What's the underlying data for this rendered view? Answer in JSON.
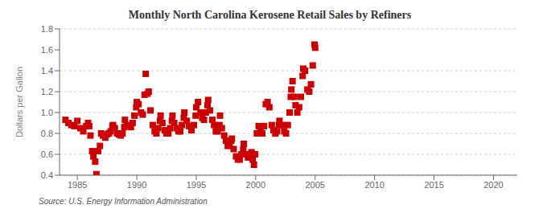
{
  "chart_data": {
    "type": "scatter",
    "title": "Monthly North Carolina Kerosene Retail Sales by Refiners",
    "ylabel": "Dollars per Gallon",
    "annotations": [
      "Source: U.S. Energy Information Administration"
    ],
    "color": "#CC0000",
    "marker": "square",
    "grid": "y",
    "xlim": [
      1983.5,
      2022
    ],
    "ylim": [
      0.4,
      1.8
    ],
    "xticks": [
      1985,
      1990,
      1995,
      2000,
      2005,
      2010,
      2015,
      2020
    ],
    "yticks": [
      0.4,
      0.6,
      0.8,
      {
        "value": 1.0,
        "label": "1.0"
      },
      1.2,
      1.4,
      1.6,
      1.8
    ],
    "x": [
      1984.0,
      1984.25,
      1984.5,
      1984.75,
      1985.0,
      1985.25,
      1985.5,
      1985.75,
      1985.9,
      1986.0,
      1986.1,
      1986.25,
      1986.35,
      1986.5,
      1986.6,
      1986.75,
      1986.9,
      1987.0,
      1987.15,
      1987.35,
      1987.5,
      1987.65,
      1987.8,
      1987.95,
      1988.0,
      1988.15,
      1988.35,
      1988.5,
      1988.65,
      1988.8,
      1988.95,
      1989.0,
      1989.15,
      1989.35,
      1989.5,
      1989.65,
      1989.8,
      1989.95,
      1990.0,
      1990.15,
      1990.35,
      1990.5,
      1990.65,
      1990.75,
      1990.9,
      1991.0,
      1991.15,
      1991.35,
      1991.5,
      1991.65,
      1991.8,
      1991.95,
      1992.0,
      1992.15,
      1992.35,
      1992.5,
      1992.65,
      1992.8,
      1992.95,
      1993.0,
      1993.15,
      1993.35,
      1993.5,
      1993.65,
      1993.8,
      1993.95,
      1994.0,
      1994.2,
      1994.4,
      1994.6,
      1994.8,
      1994.95,
      1995.0,
      1995.15,
      1995.35,
      1995.5,
      1995.65,
      1995.8,
      1995.95,
      1996.0,
      1996.15,
      1996.35,
      1996.5,
      1996.65,
      1996.8,
      1996.95,
      1997.0,
      1997.15,
      1997.35,
      1997.5,
      1997.65,
      1997.8,
      1997.95,
      1998.0,
      1998.15,
      1998.35,
      1998.5,
      1998.65,
      1998.8,
      1998.95,
      1999.0,
      1999.15,
      1999.35,
      1999.5,
      1999.65,
      1999.75,
      1999.85,
      1999.95,
      2000.1,
      2000.25,
      2000.4,
      2000.55,
      2000.7,
      2000.85,
      2001.0,
      2001.15,
      2001.35,
      2001.5,
      2001.65,
      2001.8,
      2001.95,
      2002.0,
      2002.2,
      2002.4,
      2002.55,
      2002.7,
      2002.85,
      2002.95,
      2003.0,
      2003.1,
      2003.25,
      2003.35,
      2003.5,
      2003.65,
      2003.8,
      2003.95,
      2004.0,
      2004.15,
      2004.35,
      2004.5,
      2004.65,
      2004.8,
      2004.95,
      2005.0
    ],
    "values": [
      0.93,
      0.9,
      0.88,
      0.87,
      0.92,
      0.85,
      0.82,
      0.87,
      0.9,
      0.87,
      0.78,
      0.63,
      0.58,
      0.53,
      0.41,
      0.63,
      0.68,
      0.8,
      0.78,
      0.76,
      0.79,
      0.8,
      0.82,
      0.87,
      0.88,
      0.85,
      0.8,
      0.79,
      0.78,
      0.8,
      0.86,
      0.93,
      0.88,
      0.87,
      0.86,
      0.9,
      0.97,
      1.05,
      1.1,
      1.08,
      1.0,
      0.98,
      1.17,
      1.37,
      1.18,
      1.2,
      1.02,
      0.88,
      0.82,
      0.8,
      0.85,
      0.92,
      0.97,
      0.9,
      0.83,
      0.8,
      0.8,
      0.85,
      0.92,
      0.97,
      0.9,
      0.85,
      0.82,
      0.82,
      0.88,
      0.95,
      1.0,
      0.92,
      0.87,
      0.83,
      0.88,
      0.97,
      1.05,
      1.1,
      1.0,
      0.95,
      0.93,
      1.0,
      1.07,
      1.12,
      1.02,
      0.93,
      0.88,
      0.82,
      0.82,
      0.88,
      0.97,
      0.85,
      0.78,
      0.73,
      0.68,
      0.7,
      0.73,
      0.75,
      0.65,
      0.58,
      0.55,
      0.55,
      0.6,
      0.65,
      0.7,
      0.6,
      0.57,
      0.57,
      0.62,
      0.55,
      0.5,
      0.6,
      0.8,
      0.87,
      0.83,
      0.8,
      0.87,
      1.08,
      1.1,
      1.05,
      0.88,
      0.83,
      0.8,
      0.82,
      0.88,
      0.92,
      0.88,
      0.82,
      0.8,
      0.88,
      1.0,
      1.15,
      1.22,
      1.3,
      1.15,
      1.07,
      1.0,
      1.05,
      1.15,
      1.35,
      1.42,
      1.4,
      1.22,
      1.2,
      1.27,
      1.45,
      1.65,
      1.62
    ]
  }
}
